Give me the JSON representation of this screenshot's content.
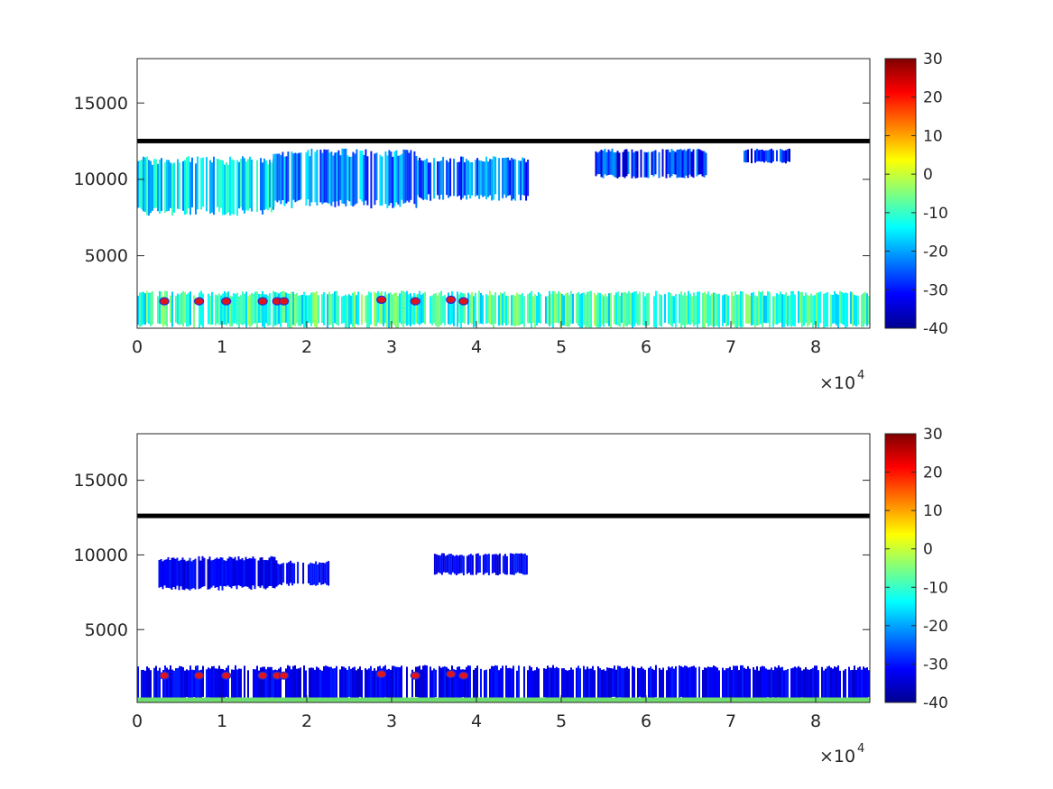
{
  "chart_data": [
    {
      "type": "heatmap",
      "xlim": [
        0,
        86400
      ],
      "ylim": [
        0,
        18000
      ],
      "x_ticks": [
        0,
        10000,
        20000,
        30000,
        40000,
        50000,
        60000,
        70000,
        80000
      ],
      "x_tick_labels": [
        "0",
        "1",
        "2",
        "3",
        "4",
        "5",
        "6",
        "7",
        "8"
      ],
      "x_exponent_label": {
        "base": "×10",
        "power": "4"
      },
      "y_ticks": [
        5000,
        10000,
        15000
      ],
      "y_tick_labels": [
        "5000",
        "10000",
        "15000"
      ],
      "colormap": "jet",
      "colorbar": {
        "range": [
          -40,
          30
        ],
        "ticks": [
          -40,
          -30,
          -20,
          -10,
          0,
          10,
          20,
          30
        ],
        "tick_labels": [
          "-40",
          "-30",
          "-20",
          "-10",
          "0",
          "10",
          "20",
          "30"
        ]
      },
      "reference_line": {
        "y": 12500,
        "color": "#000000"
      },
      "markers": {
        "color": "#e0151b",
        "x": [
          3200,
          7300,
          10500,
          14800,
          16500,
          17300,
          28800,
          32800,
          37000,
          38500
        ],
        "y": [
          1800,
          1800,
          1800,
          1800,
          1800,
          1800,
          1900,
          1800,
          1900,
          1800
        ]
      },
      "regions": [
        {
          "x": [
            0,
            16000
          ],
          "y": [
            7500,
            11500
          ],
          "value": -16
        },
        {
          "x": [
            16000,
            33000
          ],
          "y": [
            8000,
            12000
          ],
          "value": -22
        },
        {
          "x": [
            33000,
            46000
          ],
          "y": [
            8500,
            11500
          ],
          "value": -24
        },
        {
          "x": [
            54000,
            67000
          ],
          "y": [
            10000,
            12000
          ],
          "value": -28
        },
        {
          "x": [
            71500,
            77000
          ],
          "y": [
            11000,
            12000
          ],
          "value": -30
        },
        {
          "x": [
            0,
            86400
          ],
          "y": [
            0,
            2500
          ],
          "value": -10
        }
      ]
    },
    {
      "type": "heatmap",
      "xlim": [
        0,
        86400
      ],
      "ylim": [
        0,
        18000
      ],
      "x_ticks": [
        0,
        10000,
        20000,
        30000,
        40000,
        50000,
        60000,
        70000,
        80000
      ],
      "x_tick_labels": [
        "0",
        "1",
        "2",
        "3",
        "4",
        "5",
        "6",
        "7",
        "8"
      ],
      "x_exponent_label": {
        "base": "×10",
        "power": "4"
      },
      "y_ticks": [
        5000,
        10000,
        15000
      ],
      "y_tick_labels": [
        "5000",
        "10000",
        "15000"
      ],
      "colormap": "jet",
      "colorbar": {
        "range": [
          -40,
          30
        ],
        "ticks": [
          -40,
          -30,
          -20,
          -10,
          0,
          10,
          20,
          30
        ],
        "tick_labels": [
          "-40",
          "-30",
          "-20",
          "-10",
          "0",
          "10",
          "20",
          "30"
        ]
      },
      "reference_line": {
        "y": 12500,
        "color": "#000000"
      },
      "ground_line": {
        "y": 150,
        "color": "#6fdc6f"
      },
      "markers": {
        "color": "#e0151b",
        "x": [
          3200,
          7300,
          10500,
          14800,
          16500,
          17300,
          28800,
          32800,
          37000,
          38500
        ],
        "y": [
          1800,
          1800,
          1800,
          1800,
          1800,
          1800,
          1900,
          1800,
          1900,
          1800
        ]
      },
      "regions": [
        {
          "x": [
            2500,
            16500
          ],
          "y": [
            7500,
            9800
          ],
          "value": -32
        },
        {
          "x": [
            16500,
            23000
          ],
          "y": [
            7800,
            9500
          ],
          "value": -32
        },
        {
          "x": [
            35000,
            46000
          ],
          "y": [
            8500,
            10000
          ],
          "value": -32
        },
        {
          "x": [
            0,
            86400
          ],
          "y": [
            0,
            2500
          ],
          "value": -32
        }
      ]
    }
  ]
}
